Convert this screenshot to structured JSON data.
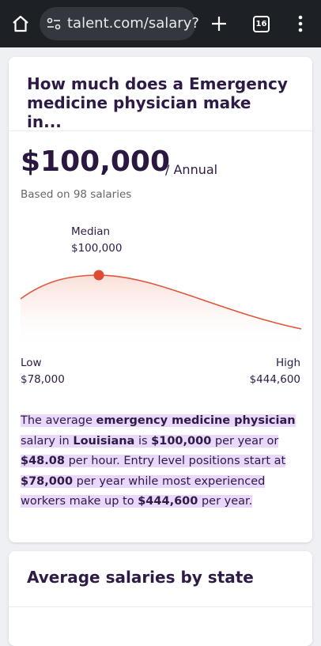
{
  "browser": {
    "url": "talent.com/salary?",
    "tab_count": "16"
  },
  "card": {
    "title": "How much does a Emergency medicine physician make in...",
    "salary": "$100,000",
    "period": "/ Annual",
    "based_on": "Based on 98 salaries",
    "median_label": "Median",
    "median_value": "$100,000",
    "low_label": "Low",
    "low_value": "$78,000",
    "high_label": "High",
    "high_value": "$444,600",
    "description": [
      {
        "text": "The average ",
        "bold": false
      },
      {
        "text": "emergency medicine physician",
        "bold": true
      },
      {
        "text": " salary in ",
        "bold": false
      },
      {
        "text": "Louisiana",
        "bold": true
      },
      {
        "text": " is ",
        "bold": false
      },
      {
        "text": "$100,000",
        "bold": true
      },
      {
        "text": " per year or ",
        "bold": false
      },
      {
        "text": "$48.08",
        "bold": true
      },
      {
        "text": " per hour. Entry level positions start at ",
        "bold": false
      },
      {
        "text": "$78,000",
        "bold": true
      },
      {
        "text": " per year while most experienced workers make up to ",
        "bold": false
      },
      {
        "text": "$444,600",
        "bold": true
      },
      {
        "text": " per year.",
        "bold": false
      }
    ]
  },
  "states": {
    "title": "Average salaries by state"
  }
}
